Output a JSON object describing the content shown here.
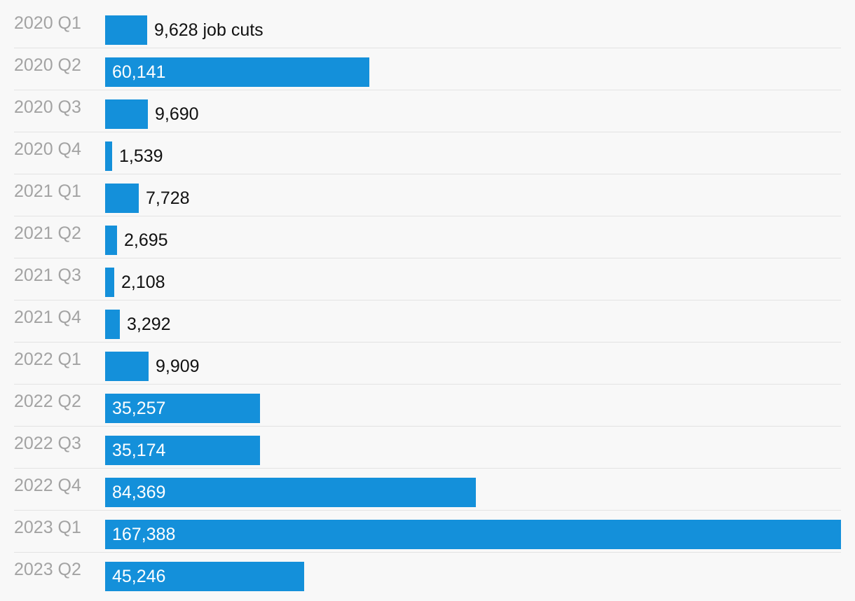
{
  "chart_data": {
    "type": "bar",
    "orientation": "horizontal",
    "categories": [
      "2020 Q1",
      "2020 Q2",
      "2020 Q3",
      "2020 Q4",
      "2021 Q1",
      "2021 Q2",
      "2021 Q3",
      "2021 Q4",
      "2022 Q1",
      "2022 Q2",
      "2022 Q3",
      "2022 Q4",
      "2023 Q1",
      "2023 Q2"
    ],
    "values": [
      9628,
      60141,
      9690,
      1539,
      7728,
      2695,
      2108,
      3292,
      9909,
      35257,
      35174,
      84369,
      167388,
      45246
    ],
    "value_labels": [
      "9,628 job cuts",
      "60,141",
      "9,690",
      "1,539",
      "7,728",
      "2,695",
      "2,108",
      "3,292",
      "9,909",
      "35,257",
      "35,174",
      "84,369",
      "167,388",
      "45,246"
    ],
    "xlim": [
      0,
      167388
    ],
    "grid": false,
    "legend": "none",
    "bar_color": "#1490da",
    "title": "",
    "xlabel": "",
    "ylabel": ""
  }
}
